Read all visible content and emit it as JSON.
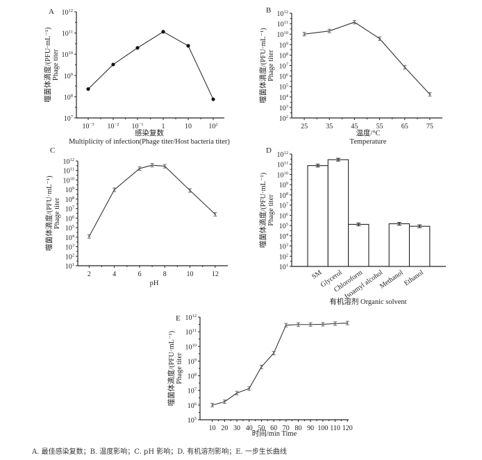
{
  "chart_data": [
    {
      "panel": "A",
      "type": "line",
      "ylabel_cn": "噬菌体滴度/(PFU·mL⁻¹)",
      "ylabel_en": "Phage titer",
      "xlabel_cn": "感染复数",
      "xlabel_en": "Multiplicity of infection(Phage titer/Host bacteria titer)",
      "yscale": "log",
      "ylim_exp": [
        7,
        12
      ],
      "categories": [
        "10^-3",
        "10^-2",
        "10^-1",
        "1",
        "10",
        "10^2"
      ],
      "values": [
        230000000.0,
        3300000000.0,
        20000000000.0,
        115000000000.0,
        25000000000.0,
        76000000.0
      ],
      "marker": "filled-circle",
      "error_bars": false
    },
    {
      "panel": "B",
      "type": "line",
      "ylabel_cn": "噬菌体滴度/(PFU·mL⁻¹)",
      "ylabel_en": "Phage titer",
      "xlabel_cn": "温度/°C",
      "xlabel_en": "Temperature",
      "yscale": "log",
      "ylim_exp": [
        2,
        12
      ],
      "xlim": [
        20,
        80
      ],
      "x": [
        25,
        35,
        45,
        55,
        65,
        75
      ],
      "xticks": [
        25,
        35,
        45,
        55,
        65,
        75
      ],
      "values": [
        10000000000.0,
        20000000000.0,
        140000000000.0,
        3700000000.0,
        7000000.0,
        18000.0
      ],
      "error_bars": true
    },
    {
      "panel": "C",
      "type": "line",
      "ylabel_cn": "噬菌体滴度/(PFU·mL⁻¹)",
      "ylabel_en": "Phage titer",
      "xlabel_cn": "",
      "xlabel_en": "pH",
      "yscale": "log",
      "ylim_exp": [
        1,
        12
      ],
      "xlim": [
        1.1,
        13
      ],
      "x": [
        2,
        4,
        6,
        7,
        8,
        10,
        12
      ],
      "xticks": [
        2,
        4,
        6,
        8,
        10,
        12
      ],
      "values": [
        12000.0,
        950000000.0,
        160000000000.0,
        360000000000.0,
        280000000000.0,
        800000000.0,
        2500000.0
      ],
      "error_bars": true
    },
    {
      "panel": "D",
      "type": "bar",
      "ylabel_cn": "噬菌体滴度/(PFU·mL⁻¹)",
      "ylabel_en": "Phage titer",
      "xlabel_cn": "有机溶剂",
      "xlabel_en": "Organic solvent",
      "yscale": "log",
      "ylim_exp": [
        1,
        12
      ],
      "categories": [
        "SM",
        "Glycerol",
        "Chloroform",
        "Isoamyl alcohol",
        "Methanol",
        "Ethanol"
      ],
      "values": [
        74000000000.0,
        280000000000.0,
        130000.0,
        0,
        150000.0,
        85000.0
      ],
      "error_bars": true
    },
    {
      "panel": "E",
      "type": "line",
      "ylabel_cn": "噬菌体滴度/(PFU·mL⁻¹)",
      "ylabel_en": "Phage titer",
      "xlabel_cn": "时间/min",
      "xlabel_en": "Time",
      "yscale": "log",
      "ylim_exp": [
        5,
        12
      ],
      "xlim": [
        0,
        121
      ],
      "x": [
        10,
        20,
        30,
        40,
        50,
        60,
        70,
        80,
        90,
        100,
        110,
        120
      ],
      "xticks": [
        10,
        20,
        30,
        40,
        50,
        60,
        70,
        80,
        90,
        100,
        110,
        120
      ],
      "values": [
        1000000.0,
        1700000.0,
        6600000.0,
        13500000.0,
        400000000.0,
        3500000000.0,
        280000000000.0,
        310000000000.0,
        310000000000.0,
        320000000000.0,
        360000000000.0,
        390000000000.0
      ],
      "error_bars": true
    }
  ],
  "caption": "A. 最佳感染复数；B. 温度影响；C. pH 影响；D. 有机溶剂影响；E. 一步生长曲线"
}
